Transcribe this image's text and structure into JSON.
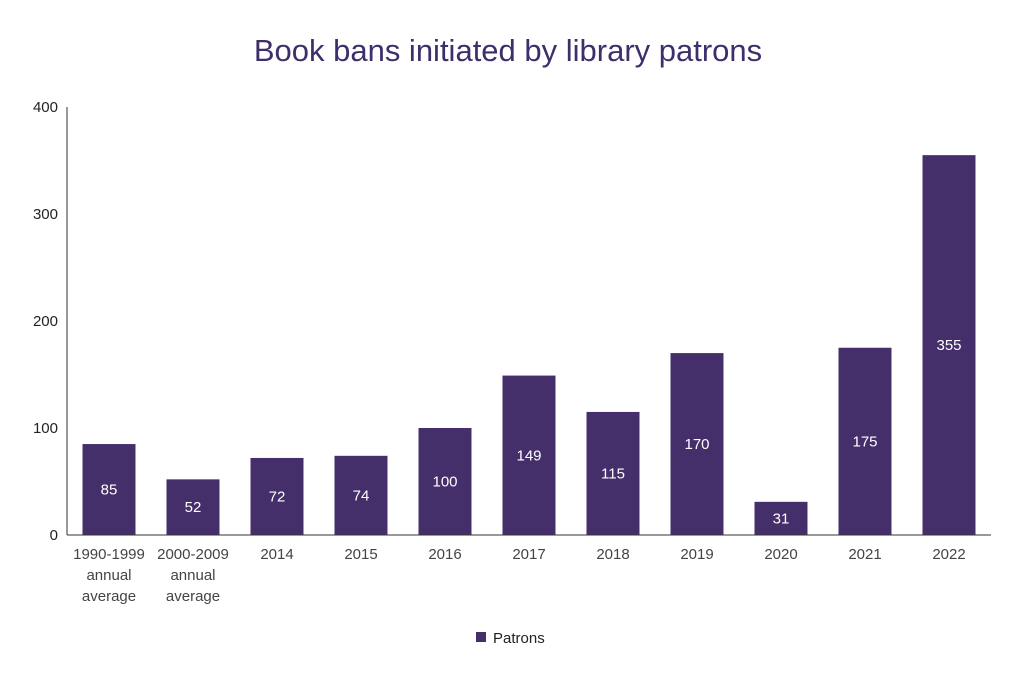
{
  "chart_data": {
    "type": "bar",
    "title": "Book bans initiated by library patrons",
    "xlabel": "",
    "ylabel": "",
    "ylim": [
      0,
      400
    ],
    "yticks": [
      0,
      100,
      200,
      300,
      400
    ],
    "categories": [
      "1990-1999 annual average",
      "2000-2009 annual average",
      "2014",
      "2015",
      "2016",
      "2017",
      "2018",
      "2019",
      "2020",
      "2021",
      "2022"
    ],
    "series": [
      {
        "name": "Patrons",
        "values": [
          85,
          52,
          72,
          74,
          100,
          149,
          115,
          170,
          31,
          175,
          355
        ],
        "color": "#442f6a"
      }
    ],
    "data_labels": true,
    "grid": false,
    "legend_position": "bottom"
  }
}
